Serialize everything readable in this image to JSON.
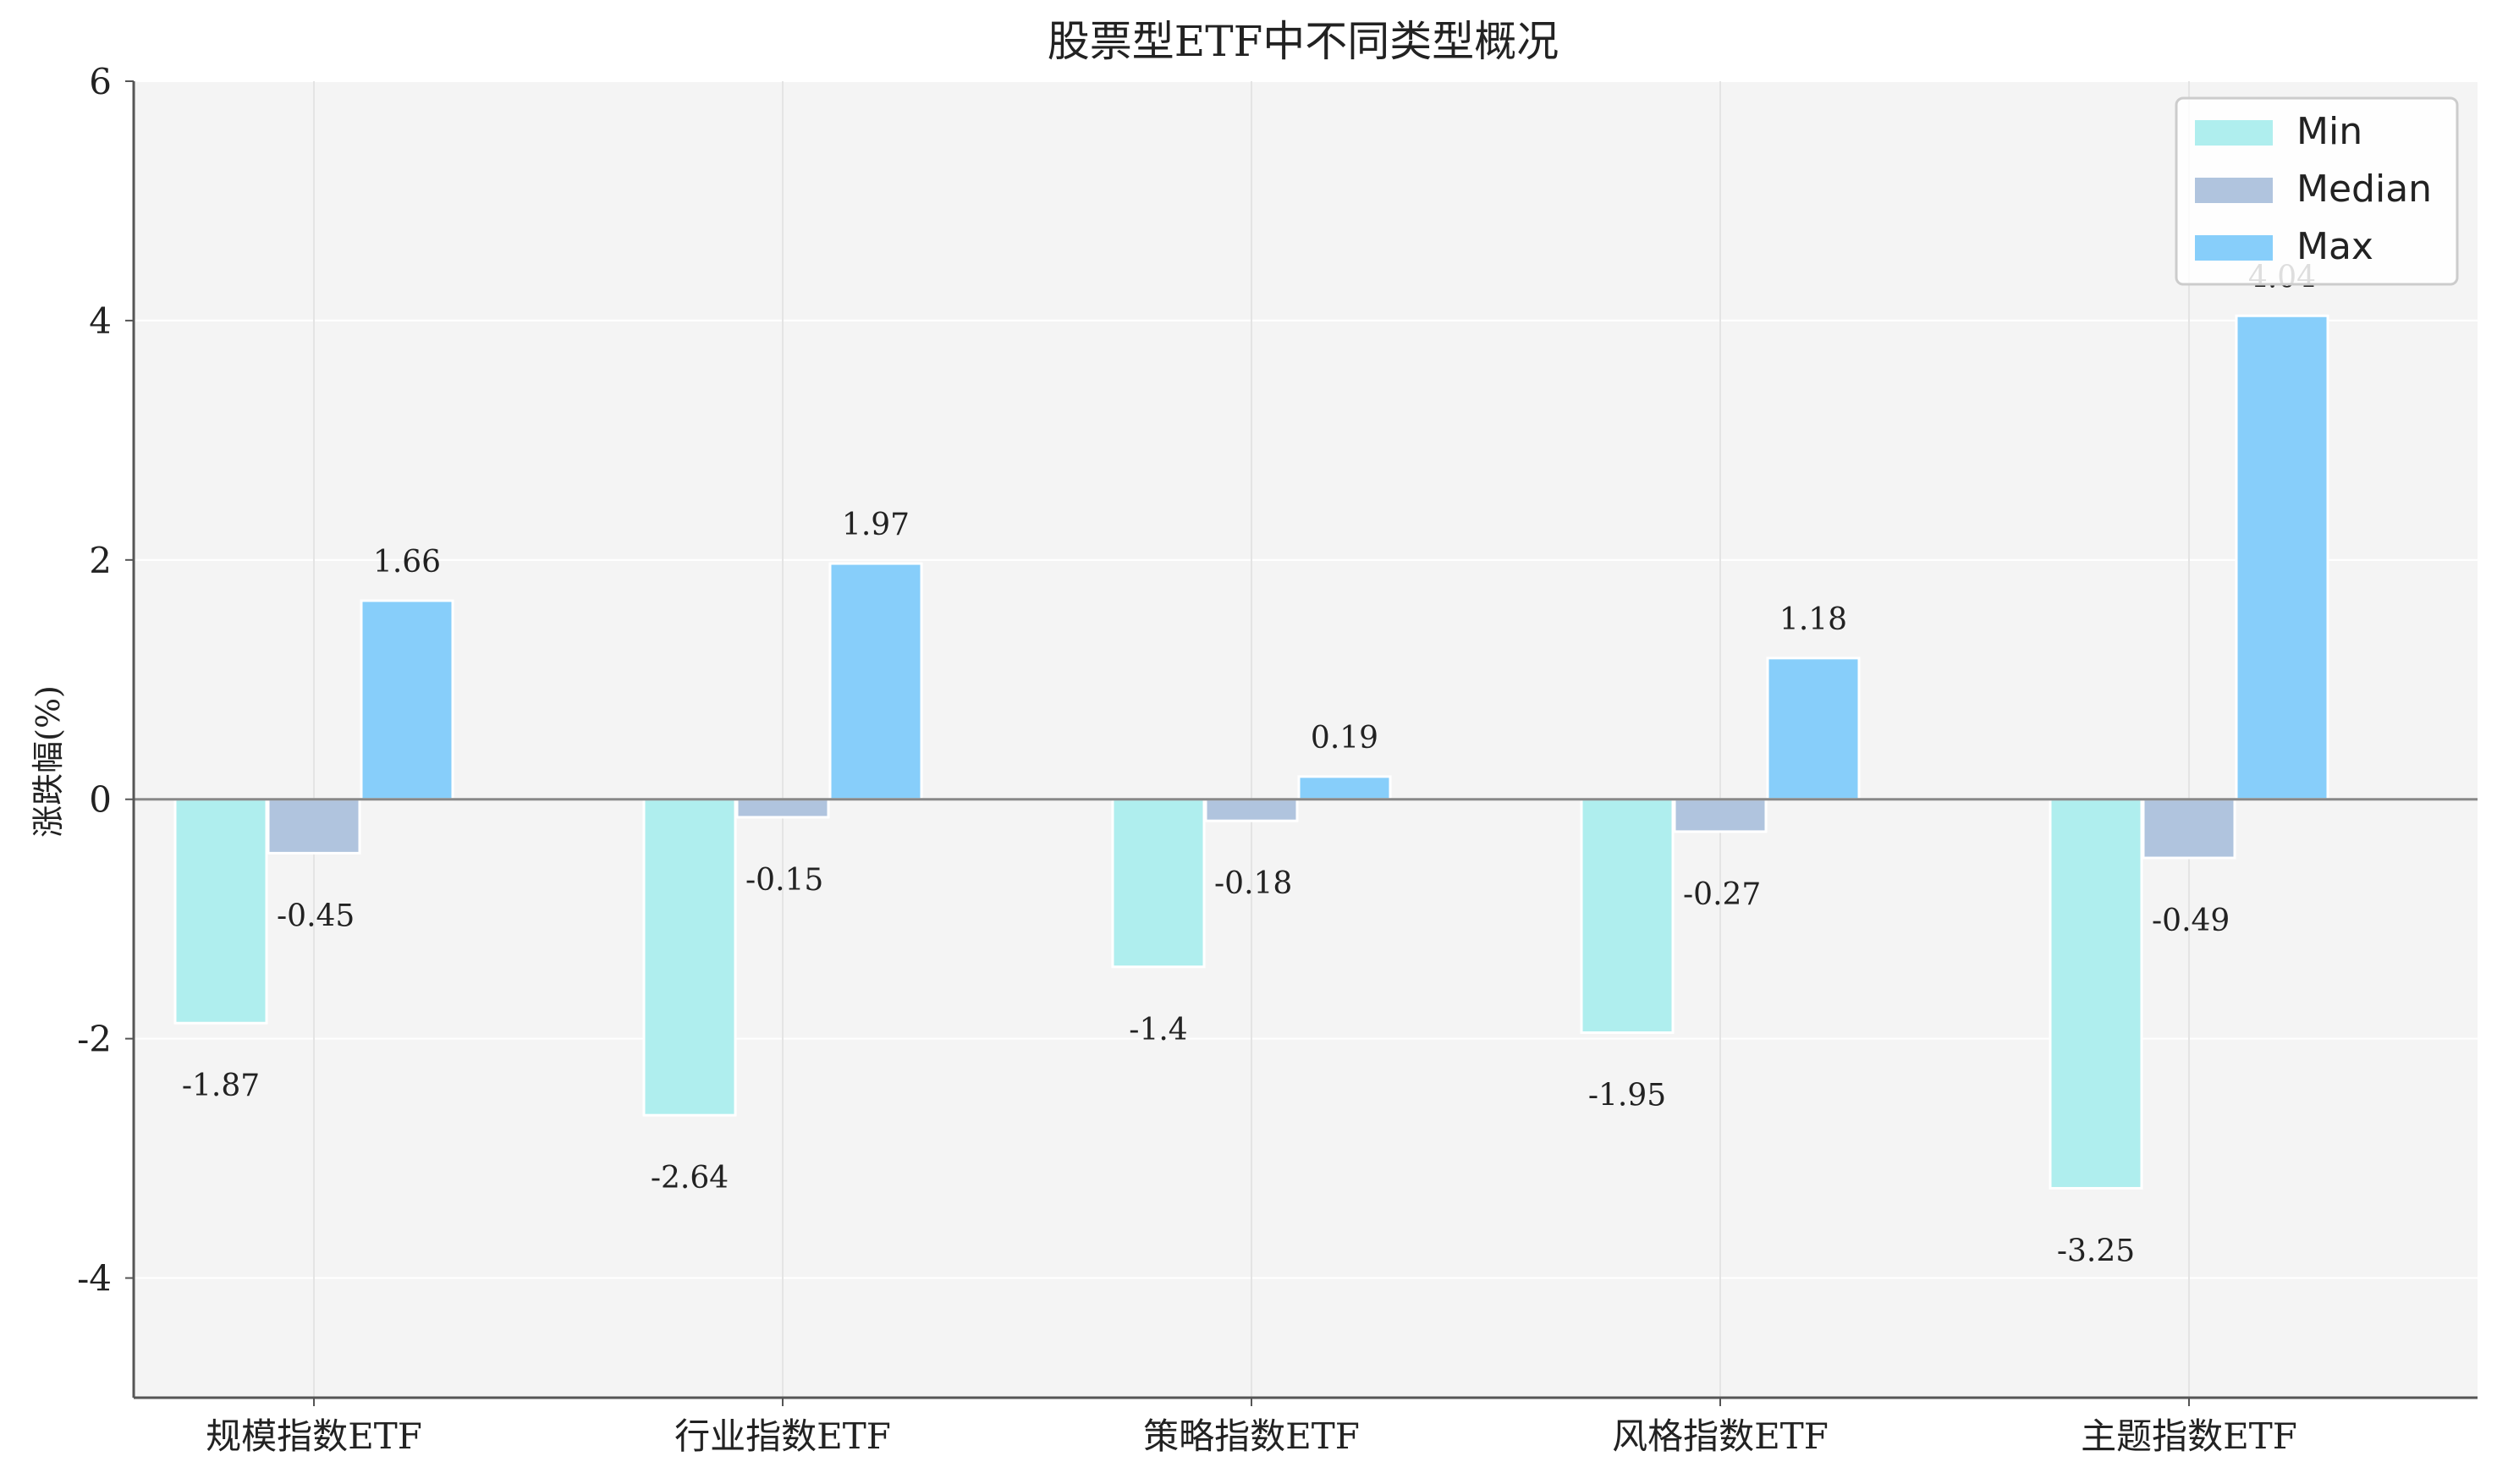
{
  "chart_data": {
    "type": "bar",
    "title": "股票型ETF中不同类型概况",
    "xlabel": "",
    "ylabel": "涨跌幅(%)",
    "ylim": [
      -5,
      6
    ],
    "yticks": [
      -4,
      -2,
      0,
      2,
      4,
      6
    ],
    "ytick_labels": [
      "-4",
      "-2",
      "0",
      "2",
      "4",
      "6"
    ],
    "grid": true,
    "legend_position": "top-right",
    "categories": [
      "规模指数ETF",
      "行业指数ETF",
      "策略指数ETF",
      "风格指数ETF",
      "主题指数ETF"
    ],
    "series": [
      {
        "name": "Min",
        "color": "#AFEEEE",
        "values": [
          -1.87,
          -2.64,
          -1.4,
          -1.95,
          -3.25
        ],
        "labels": [
          "-1.87",
          "-2.64",
          "-1.4",
          "-1.95",
          "-3.25"
        ]
      },
      {
        "name": "Median",
        "color": "#B0C4DE",
        "values": [
          -0.45,
          -0.15,
          -0.18,
          -0.27,
          -0.49
        ],
        "labels": [
          "-0.45",
          "-0.15",
          "-0.18",
          "-0.27",
          "-0.49"
        ]
      },
      {
        "name": "Max",
        "color": "#87CEFA",
        "values": [
          1.66,
          1.97,
          0.19,
          1.18,
          4.04
        ],
        "labels": [
          "1.66",
          "1.97",
          "0.19",
          "1.18",
          "4.04"
        ]
      }
    ]
  },
  "colors": {
    "plot_background": "#F4F4F4",
    "axis": "#555555",
    "grid": "#FFFFFF",
    "text": "#222222"
  }
}
